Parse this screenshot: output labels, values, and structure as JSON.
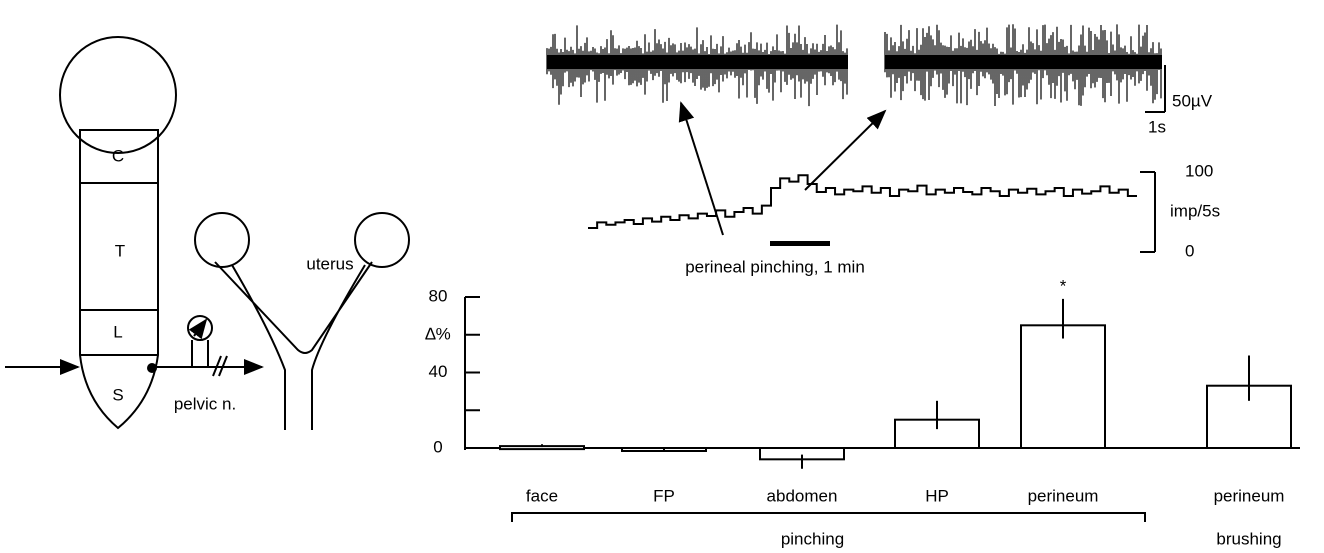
{
  "diagram": {
    "segments": [
      "C",
      "T",
      "L",
      "S"
    ],
    "nerve_label": "pelvic n.",
    "organ_label": "uterus"
  },
  "recording": {
    "voltage_scale": "50µV",
    "time_scale": "1s",
    "rate_unit": "imp/5s",
    "rate_ticks": [
      0,
      100
    ],
    "rate_values": [
      30,
      37,
      34,
      37,
      40,
      35,
      42,
      38,
      44,
      40,
      46,
      42,
      48,
      45,
      52,
      44,
      50,
      55,
      48,
      58,
      80,
      92,
      88,
      96,
      85,
      75,
      80,
      72,
      78,
      76,
      82,
      74,
      80,
      70,
      78,
      76,
      83,
      72,
      78,
      74,
      80,
      75,
      72,
      80,
      76,
      70,
      78,
      74,
      79,
      72,
      76,
      80,
      70,
      78,
      73,
      76,
      82,
      74,
      78,
      70
    ],
    "stimulus_label": "perineal pinching, 1 min"
  },
  "chart_data": {
    "type": "bar",
    "y_label": "∆%",
    "categories": [
      "face",
      "FP",
      "abdomen",
      "HP",
      "perineum",
      "perineum"
    ],
    "values": [
      1,
      -1,
      -6,
      15,
      65,
      33
    ],
    "errors": [
      1,
      1,
      5,
      10,
      14,
      16
    ],
    "ylim": [
      0,
      80
    ],
    "yticks": [
      0,
      40,
      80
    ],
    "minor_yticks": [
      20,
      60
    ],
    "annotations": [
      {
        "text": "*",
        "category": 4
      }
    ],
    "groups": [
      {
        "label": "pinching",
        "first": 0,
        "last": 4
      },
      {
        "label": "brushing",
        "first": 5,
        "last": 5
      }
    ]
  }
}
